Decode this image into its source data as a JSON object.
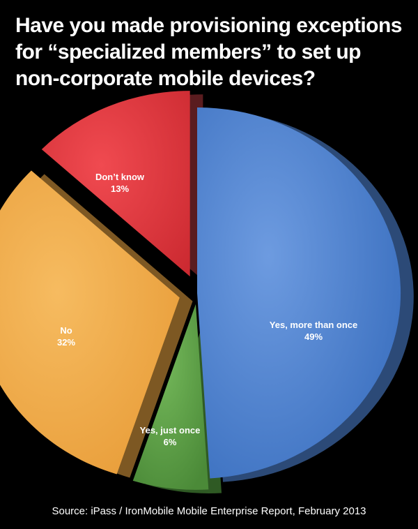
{
  "title": "Have you made provisioning exceptions\nfor “specialized members” to set up\nnon-corporate mobile devices?",
  "source": "Source: iPass / IronMobile Mobile Enterprise Report, February 2013",
  "chart_data": {
    "type": "pie",
    "title": "Have you made provisioning exceptions for “specialized members” to set up non-corporate mobile devices?",
    "slices": [
      {
        "label": "Yes, more than once",
        "value": 49,
        "value_label": "49%",
        "color": "#4a7fcc"
      },
      {
        "label": "Yes, just once",
        "value": 6,
        "value_label": "6%",
        "color": "#5aa046"
      },
      {
        "label": "No",
        "value": 32,
        "value_label": "32%",
        "color": "#f1a94a"
      },
      {
        "label": "Don’t know",
        "value": 13,
        "value_label": "13%",
        "color": "#e2363d"
      }
    ]
  }
}
